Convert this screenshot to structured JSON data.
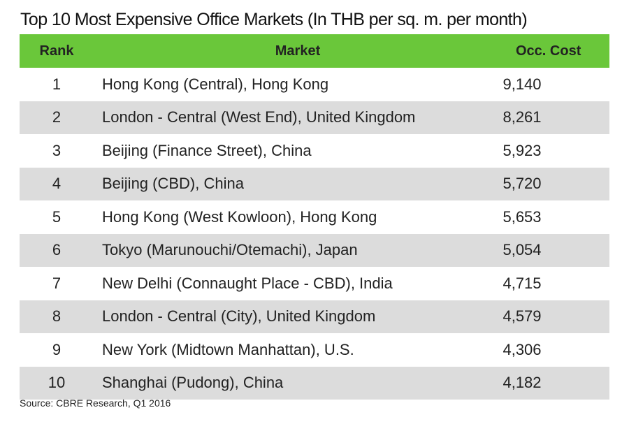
{
  "title": "Top 10 Most Expensive Office Markets (In THB per sq. m. per month)",
  "header": {
    "rank": "Rank",
    "market": "Market",
    "cost": "Occ. Cost"
  },
  "rows": [
    {
      "rank": "1",
      "market": "Hong Kong (Central), Hong Kong",
      "cost": "9,140"
    },
    {
      "rank": "2",
      "market": "London - Central (West End), United Kingdom",
      "cost": "8,261"
    },
    {
      "rank": "3",
      "market": "Beijing (Finance Street), China",
      "cost": "5,923"
    },
    {
      "rank": "4",
      "market": "Beijing (CBD), China",
      "cost": "5,720"
    },
    {
      "rank": "5",
      "market": "Hong Kong (West Kowloon), Hong Kong",
      "cost": "5,653"
    },
    {
      "rank": "6",
      "market": "Tokyo (Marunouchi/Otemachi), Japan",
      "cost": "5,054"
    },
    {
      "rank": "7",
      "market": "New Delhi (Connaught Place - CBD), India",
      "cost": "4,715"
    },
    {
      "rank": "8",
      "market": "London - Central (City), United Kingdom",
      "cost": "4,579"
    },
    {
      "rank": "9",
      "market": "New York (Midtown Manhattan), U.S.",
      "cost": "4,306"
    },
    {
      "rank": "10",
      "market": "Shanghai (Pudong), China",
      "cost": "4,182"
    }
  ],
  "source": "Source: CBRE Research, Q1 2016",
  "colors": {
    "header_bg": "#6ac73a",
    "alt_row_bg": "#dcdcdc"
  }
}
